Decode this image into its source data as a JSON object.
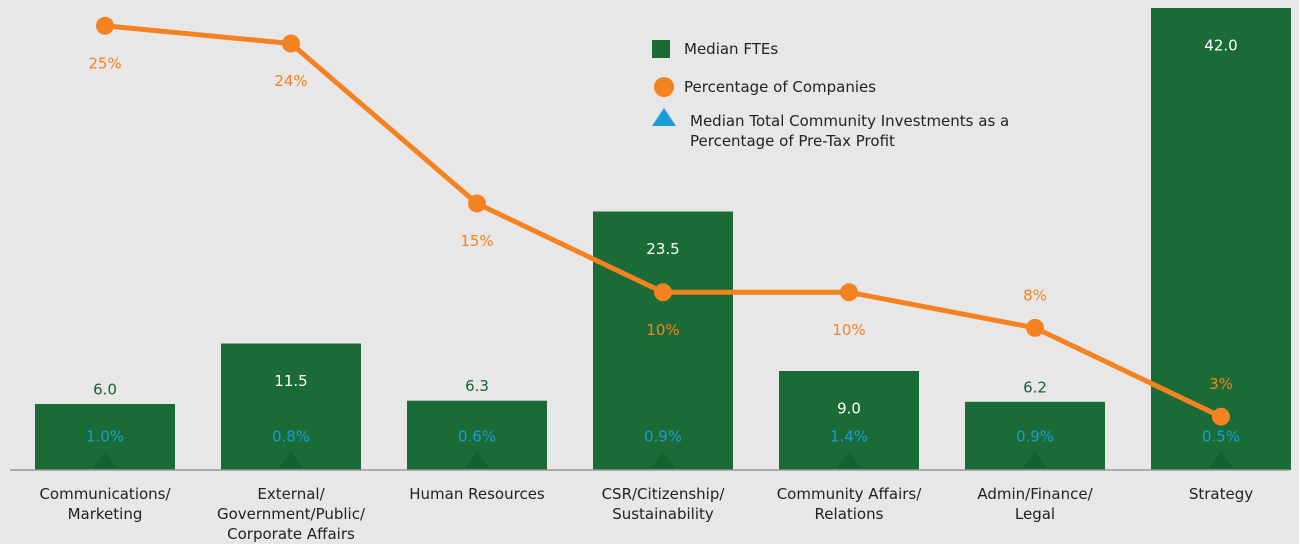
{
  "chart_data": {
    "type": "bar",
    "categories": [
      "Communications/\nMarketing",
      "External/\nGovernment/Public/\nCorporate Affairs",
      "Human Resources",
      "CSR/Citizenship/\nSustainability",
      "Community Affairs/\nRelations",
      "Admin/Finance/\nLegal",
      "Strategy"
    ],
    "ylim": [
      0,
      42
    ],
    "y2lim": [
      0,
      26
    ],
    "series": [
      {
        "name": "Median FTEs",
        "color": "#1b6b36",
        "values": [
          6,
          11.5,
          6.3,
          23.5,
          9,
          6.2,
          42
        ],
        "value_labels": [
          "6.0",
          "11.5",
          "6.3",
          "23.5",
          "9.0",
          "6.2",
          "42.0"
        ]
      },
      {
        "name": "Percentage of Companies",
        "color": "#f58220",
        "axis": "y2",
        "values": [
          25,
          24,
          15,
          10,
          10,
          8,
          3
        ],
        "value_labels": [
          "25%",
          "24%",
          "15%",
          "10%",
          "10%",
          "8%",
          "3%"
        ]
      },
      {
        "name": "Median Total Community Investments as a Percentage of Pre-Tax Profit",
        "color": "#1a9cd8",
        "values": [
          1.0,
          0.8,
          0.6,
          0.9,
          1.4,
          0.9,
          0.5
        ],
        "value_labels": [
          "1.0%",
          "0.8%",
          "0.6%",
          "0.9%",
          "1.4%",
          "0.9%",
          "0.5%"
        ]
      }
    ]
  }
}
